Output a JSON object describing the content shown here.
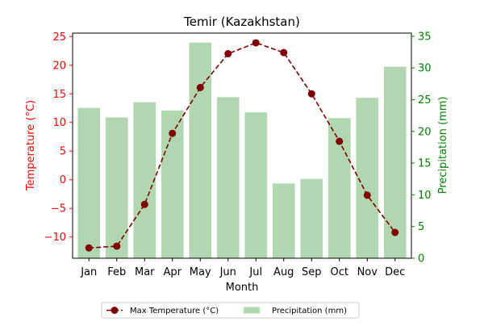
{
  "chart_data": {
    "type": "bar+line",
    "title": "Temir (Kazakhstan)",
    "xlabel": "Month",
    "categories": [
      "Jan",
      "Feb",
      "Mar",
      "Apr",
      "May",
      "Jun",
      "Jul",
      "Aug",
      "Sep",
      "Oct",
      "Nov",
      "Dec"
    ],
    "left_axis": {
      "label": "Temperature (°C)",
      "color": "#ff0000",
      "ylim": [
        -13.7,
        25.6
      ],
      "ticks": [
        -10,
        -5,
        0,
        5,
        10,
        15,
        20,
        25
      ],
      "tick_labels": [
        "−10",
        "−5",
        "0",
        "5",
        "10",
        "15",
        "20",
        "25"
      ]
    },
    "right_axis": {
      "label": "Precipitation (mm)",
      "color": "#008000",
      "ylim": [
        0,
        35.5
      ],
      "ticks": [
        0,
        5,
        10,
        15,
        20,
        25,
        30,
        35
      ],
      "tick_labels": [
        "0",
        "5",
        "10",
        "15",
        "20",
        "25",
        "30",
        "35"
      ]
    },
    "series": [
      {
        "name": "Max Temperature (°C)",
        "type": "line",
        "axis": "left",
        "color": "#800000",
        "linestyle": "dashed",
        "marker": "circle",
        "values": [
          -11.9,
          -11.6,
          -4.3,
          8.1,
          16.1,
          22.0,
          23.9,
          22.2,
          15.0,
          6.7,
          -2.7,
          -9.2
        ]
      },
      {
        "name": "Precipitation (mm)",
        "type": "bar",
        "axis": "right",
        "color": "#b1d7b1",
        "values": [
          23.7,
          22.2,
          24.6,
          23.3,
          34.0,
          25.4,
          23.0,
          11.8,
          12.5,
          22.1,
          25.3,
          30.2
        ]
      }
    ],
    "legend": {
      "placement": "bottom-center",
      "columns": 2
    },
    "grid": false
  }
}
